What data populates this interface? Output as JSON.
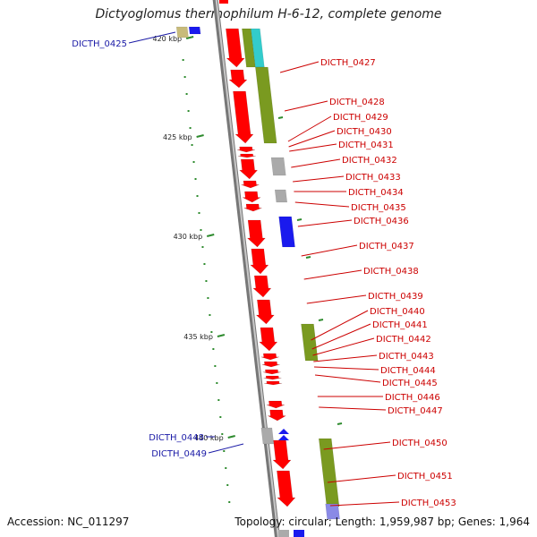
{
  "title": "Dictyoglomus thermophilum H-6-12, complete genome",
  "accession": "Accession: NC_011297",
  "topology": "Topology: circular; Length: 1,959,987 bp; Genes: 1,964",
  "colors": {
    "cds": "#ff0000",
    "backbone": "#999999",
    "tick": "#2e8b2e",
    "label_forward": "#cc0000",
    "label_reverse": "#1a1aa6",
    "cog_green": "#7a9a20",
    "cog_cyan": "#33cccc",
    "cog_blue": "#1a1aee",
    "cog_gray": "#aaaaaa",
    "cog_tan": "#c8bb7a",
    "cog_lavender": "#8a8ae6"
  },
  "ticks": [
    "420 kbp",
    "425 kbp",
    "430 kbp",
    "435 kbp",
    "440 kbp"
  ],
  "genes_forward": [
    "DICTH_0427",
    "DICTH_0428",
    "DICTH_0429",
    "DICTH_0430",
    "DICTH_0431",
    "DICTH_0432",
    "DICTH_0433",
    "DICTH_0434",
    "DICTH_0435",
    "DICTH_0436",
    "DICTH_0437",
    "DICTH_0438",
    "DICTH_0439",
    "DICTH_0440",
    "DICTH_0441",
    "DICTH_0442",
    "DICTH_0443",
    "DICTH_0444",
    "DICTH_0445",
    "DICTH_0446",
    "DICTH_0447",
    "DICTH_0450",
    "DICTH_0451",
    "DICTH_0453"
  ],
  "genes_reverse": [
    "DICTH_0425",
    "DICTH_0448",
    "DICTH_0449"
  ]
}
